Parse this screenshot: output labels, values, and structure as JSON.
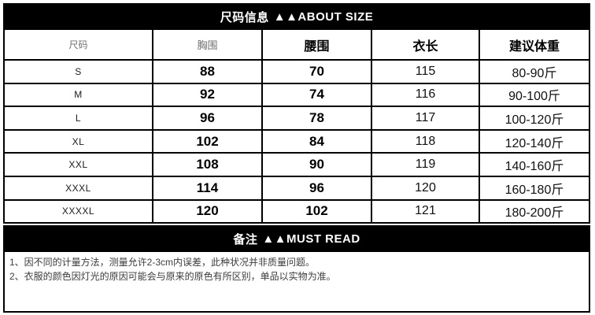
{
  "page": {
    "background": "#ffffff",
    "bar_color": "#000000",
    "bar_text_color": "#ffffff",
    "muted_header_color": "#6e6e6e"
  },
  "size_header": {
    "title_cn": "尺码信息",
    "title_en": "▲▲ABOUT SIZE"
  },
  "table": {
    "columns": [
      {
        "key": "size",
        "label": "尺码"
      },
      {
        "key": "bust",
        "label": "胸围"
      },
      {
        "key": "waist",
        "label": "腰围"
      },
      {
        "key": "length",
        "label": "衣长"
      },
      {
        "key": "weight",
        "label": "建议体重"
      }
    ],
    "rows": [
      {
        "size": "S",
        "bust": "88",
        "waist": "70",
        "length": "115",
        "weight": "80-90斤"
      },
      {
        "size": "M",
        "bust": "92",
        "waist": "74",
        "length": "116",
        "weight": "90-100斤"
      },
      {
        "size": "L",
        "bust": "96",
        "waist": "78",
        "length": "117",
        "weight": "100-120斤"
      },
      {
        "size": "XL",
        "bust": "102",
        "waist": "84",
        "length": "118",
        "weight": "120-140斤"
      },
      {
        "size": "XXL",
        "bust": "108",
        "waist": "90",
        "length": "119",
        "weight": "140-160斤"
      },
      {
        "size": "XXXL",
        "bust": "114",
        "waist": "96",
        "length": "120",
        "weight": "160-180斤"
      },
      {
        "size": "XXXXL",
        "bust": "120",
        "waist": "102",
        "length": "121",
        "weight": "180-200斤"
      }
    ]
  },
  "notes": {
    "title_cn": "备注",
    "title_en": "▲▲MUST READ",
    "items": [
      "1、因不同的计量方法，测量允许2-3cm内误差，此种状况并非质量问题。",
      "2、衣服的颜色因灯光的原因可能会与原来的原色有所区别，单品以实物为准。"
    ]
  }
}
